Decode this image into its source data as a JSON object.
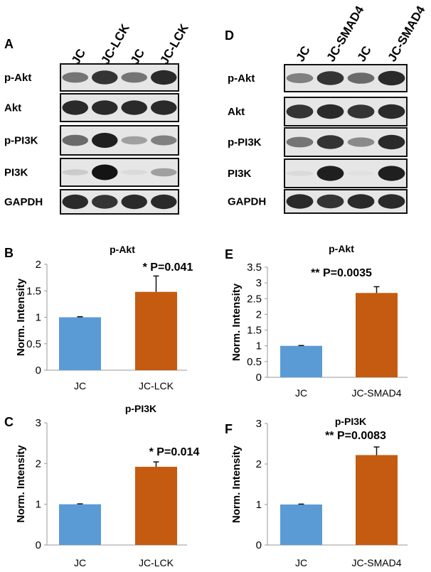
{
  "blots": [
    {
      "panel": "A",
      "lanes": [
        "JC",
        "JC-LCK",
        "JC",
        "JC-LCK"
      ],
      "rows": [
        {
          "label": "p-Akt",
          "intensity": [
            0.55,
            0.85,
            0.55,
            0.9
          ]
        },
        {
          "label": "Akt",
          "intensity": [
            0.9,
            0.9,
            0.9,
            0.9
          ]
        },
        {
          "label": "p-PI3K",
          "intensity": [
            0.6,
            0.95,
            0.35,
            0.5
          ]
        },
        {
          "label": "PI3K",
          "intensity": [
            0.15,
            1.0,
            0.08,
            0.35
          ]
        },
        {
          "label": "GAPDH",
          "intensity": [
            0.9,
            0.85,
            0.9,
            0.9
          ]
        }
      ]
    },
    {
      "panel": "D",
      "lanes": [
        "JC",
        "JC-SMAD4",
        "JC",
        "JC-SMAD4"
      ],
      "rows": [
        {
          "label": "p-Akt",
          "intensity": [
            0.5,
            0.85,
            0.6,
            0.9
          ]
        },
        {
          "label": "Akt",
          "intensity": [
            0.85,
            0.9,
            0.85,
            0.9
          ]
        },
        {
          "label": "p-PI3K",
          "intensity": [
            0.55,
            0.85,
            0.45,
            0.9
          ]
        },
        {
          "label": "PI3K",
          "intensity": [
            0.08,
            0.95,
            0.05,
            0.95
          ]
        },
        {
          "label": "GAPDH",
          "intensity": [
            0.9,
            0.85,
            0.9,
            0.9
          ]
        }
      ]
    }
  ],
  "chart_data": [
    {
      "panel": "B",
      "type": "bar",
      "title": "p-Akt",
      "ylabel": "Norm. Intensity",
      "categories": [
        "JC",
        "JC-LCK"
      ],
      "values": [
        1.0,
        1.48
      ],
      "errors": [
        0.01,
        0.3
      ],
      "ylim": [
        0,
        2
      ],
      "yticks": [
        "0",
        "0.5",
        "1",
        "1.5",
        "2"
      ],
      "ytick_values": [
        0,
        0.5,
        1,
        1.5,
        2
      ],
      "annotation": "* P=0.041",
      "colors": [
        "#5b9bd5",
        "#c55a11"
      ]
    },
    {
      "panel": "C",
      "type": "bar",
      "title": "p-PI3K",
      "ylabel": "Norm. Intensity",
      "categories": [
        "JC",
        "JC-LCK"
      ],
      "values": [
        1.0,
        1.92
      ],
      "errors": [
        0.01,
        0.12
      ],
      "ylim": [
        0,
        3
      ],
      "yticks": [
        "0",
        "1",
        "2",
        "3"
      ],
      "ytick_values": [
        0,
        1,
        2,
        3
      ],
      "annotation": "* P=0.014",
      "colors": [
        "#5b9bd5",
        "#c55a11"
      ]
    },
    {
      "panel": "E",
      "type": "bar",
      "title": "p-Akt",
      "ylabel": "Norm. Intensity",
      "categories": [
        "JC",
        "JC-SMAD4"
      ],
      "values": [
        1.0,
        2.68
      ],
      "errors": [
        0.01,
        0.2
      ],
      "ylim": [
        0,
        3.5
      ],
      "yticks": [
        "0",
        "0.5",
        "1",
        "1.5",
        "2",
        "2.5",
        "3",
        "3.5"
      ],
      "ytick_values": [
        0,
        0.5,
        1,
        1.5,
        2,
        2.5,
        3,
        3.5
      ],
      "annotation": "** P=0.0035",
      "colors": [
        "#5b9bd5",
        "#c55a11"
      ]
    },
    {
      "panel": "F",
      "type": "bar",
      "title": "p-PI3K",
      "ylabel": "Norm. Intensity",
      "categories": [
        "JC",
        "JC-SMAD4"
      ],
      "values": [
        1.0,
        2.22
      ],
      "errors": [
        0.01,
        0.2
      ],
      "ylim": [
        0,
        3
      ],
      "yticks": [
        "0",
        "1",
        "2",
        "3"
      ],
      "ytick_values": [
        0,
        1,
        2,
        3
      ],
      "annotation": "** P=0.0083",
      "colors": [
        "#5b9bd5",
        "#c55a11"
      ]
    }
  ]
}
